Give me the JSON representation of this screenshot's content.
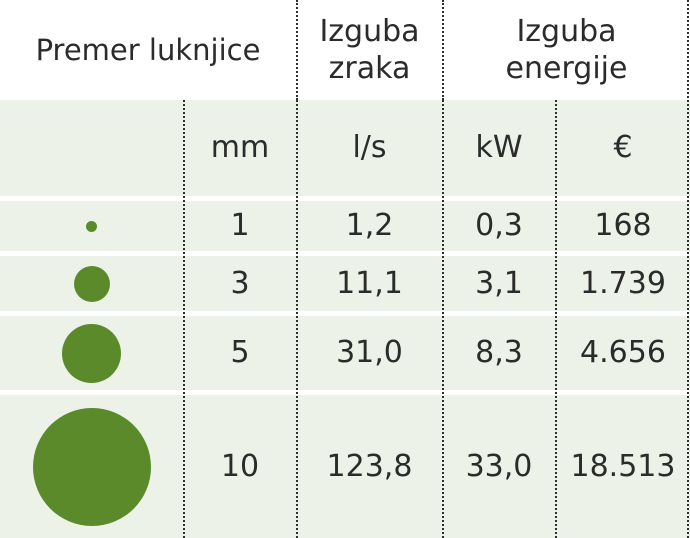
{
  "header": {
    "hole_diameter": "Premer luknjice",
    "air_loss": "Izguba\nzraka",
    "energy_loss": "Izguba\nenergije"
  },
  "units": {
    "diameter": "mm",
    "air": "l/s",
    "power": "kW",
    "cost": "€"
  },
  "rows": [
    {
      "diameter": "1",
      "air": "1,2",
      "power": "0,3",
      "cost": "168"
    },
    {
      "diameter": "3",
      "air": "11,1",
      "power": "3,1",
      "cost": "1.739"
    },
    {
      "diameter": "5",
      "air": "31,0",
      "power": "8,3",
      "cost": "4.656"
    },
    {
      "diameter": "10",
      "air": "123,8",
      "power": "33,0",
      "cost": "18.513"
    }
  ],
  "colors": {
    "dot": "#5a8a2a",
    "row_background": "#ecf2e8",
    "text": "#2b2b2b"
  }
}
